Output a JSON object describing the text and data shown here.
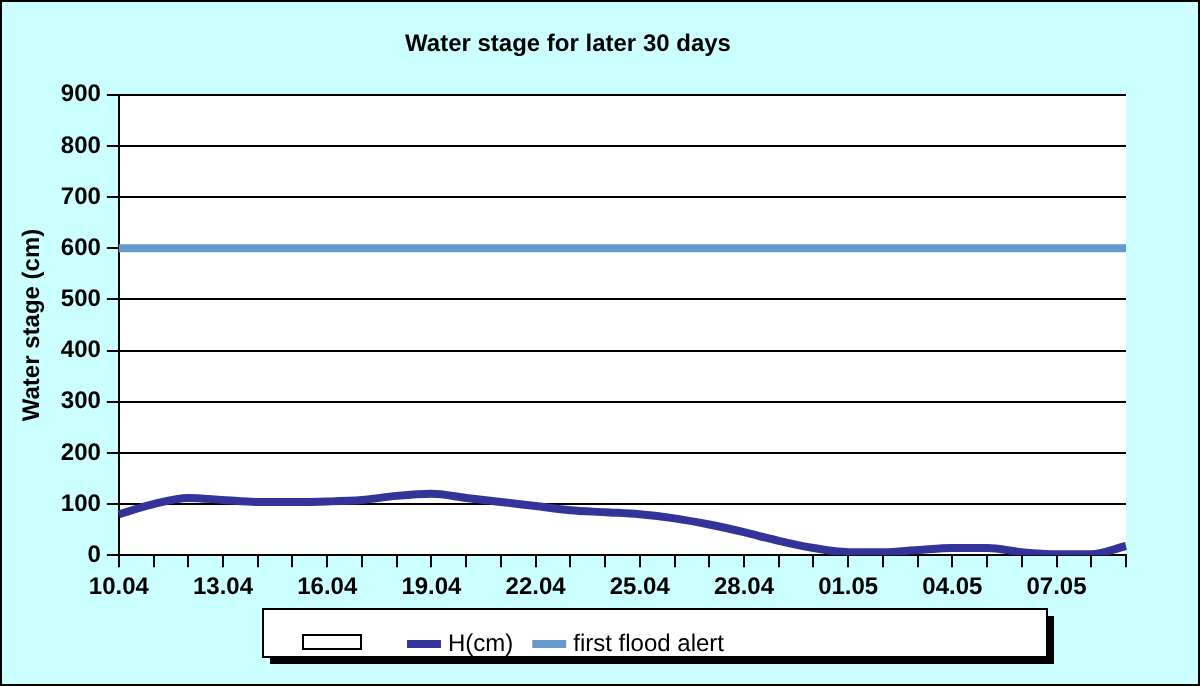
{
  "chart_data": {
    "type": "line",
    "title": "Water stage for later 30 days",
    "ylabel": "Water stage (cm)",
    "categories": [
      "10.04",
      null,
      null,
      "13.04",
      null,
      null,
      "16.04",
      null,
      null,
      "19.04",
      null,
      null,
      "22.04",
      null,
      null,
      "25.04",
      null,
      null,
      "28.04",
      null,
      null,
      "01.05",
      null,
      null,
      "04.05",
      null,
      null,
      "07.05",
      null,
      null
    ],
    "series": [
      {
        "name": "H(cm)",
        "color": "#333399",
        "values": [
          80,
          100,
          112,
          108,
          104,
          104,
          105,
          108,
          116,
          120,
          112,
          104,
          96,
          88,
          84,
          80,
          72,
          60,
          45,
          28,
          14,
          6,
          6,
          10,
          14,
          14,
          6,
          2,
          2,
          18
        ]
      },
      {
        "name": "first flood alert",
        "color": "#6699cc",
        "values": [
          600,
          600,
          600,
          600,
          600,
          600,
          600,
          600,
          600,
          600,
          600,
          600,
          600,
          600,
          600,
          600,
          600,
          600,
          600,
          600,
          600,
          600,
          600,
          600,
          600,
          600,
          600,
          600,
          600,
          600
        ]
      }
    ],
    "ylim": [
      0,
      900
    ],
    "yticks": [
      0,
      100,
      200,
      300,
      400,
      500,
      600,
      700,
      800,
      900
    ],
    "grid": "y",
    "legend": "bottom",
    "marker": "none",
    "line_style": "solid"
  }
}
